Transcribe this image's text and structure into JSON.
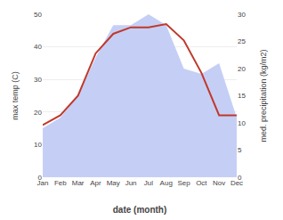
{
  "chart_data": {
    "type": "line",
    "categories": [
      "Jan",
      "Feb",
      "Mar",
      "Apr",
      "May",
      "Jun",
      "Jul",
      "Aug",
      "Sep",
      "Oct",
      "Nov",
      "Dec"
    ],
    "series": [
      {
        "type": "line",
        "color": "#c0392b",
        "values": [
          16,
          19,
          25,
          38,
          44,
          46,
          46,
          47,
          42,
          32,
          19,
          19
        ]
      },
      {
        "type": "area",
        "axis": "y2",
        "color": "#c5cff5",
        "values": [
          9,
          11,
          15,
          22,
          28,
          28,
          30,
          28,
          20,
          19,
          21,
          11
        ]
      }
    ],
    "xlabel": "date (month)",
    "ylabel": "max temp (C)",
    "y2label": "med. precipitation (kg/m2)",
    "ylim": [
      0,
      50
    ],
    "yticks": [
      0,
      10,
      20,
      30,
      40,
      50
    ],
    "y2lim": [
      0,
      30
    ],
    "y2ticks": [
      0,
      5,
      10,
      15,
      20,
      25,
      30
    ],
    "grid": true
  }
}
